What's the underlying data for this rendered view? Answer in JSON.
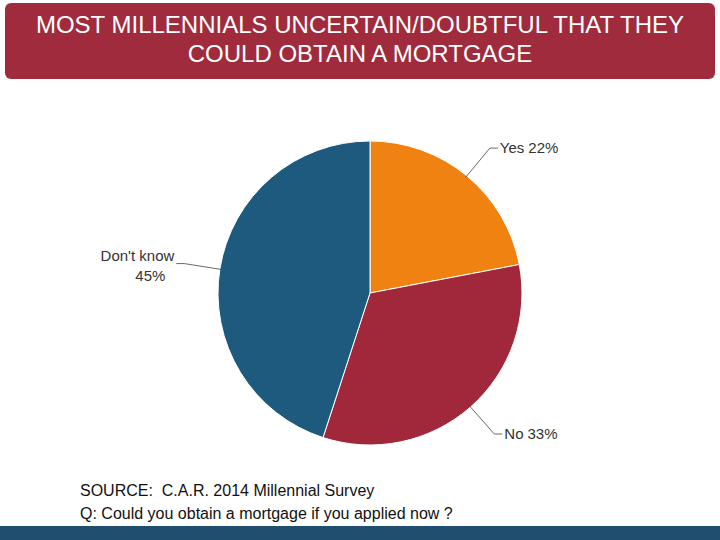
{
  "chart_data": {
    "type": "pie",
    "title": "MOST MILLENNIALS UNCERTAIN/DOUBTFUL THAT THEY COULD OBTAIN A MORTGAGE",
    "categories": [
      "Yes",
      "No",
      "Don't know"
    ],
    "values": [
      22,
      33,
      45
    ],
    "value_labels": [
      "22%",
      "33%",
      "45%"
    ],
    "colors": [
      "#ef8210",
      "#a1283a",
      "#1d5a7d"
    ],
    "data_labels": true,
    "annotations": [
      "SOURCE:  C.A.R. 2014 Millennial Survey",
      "Q: Could you obtain a mortgage if you applied now ?"
    ]
  }
}
